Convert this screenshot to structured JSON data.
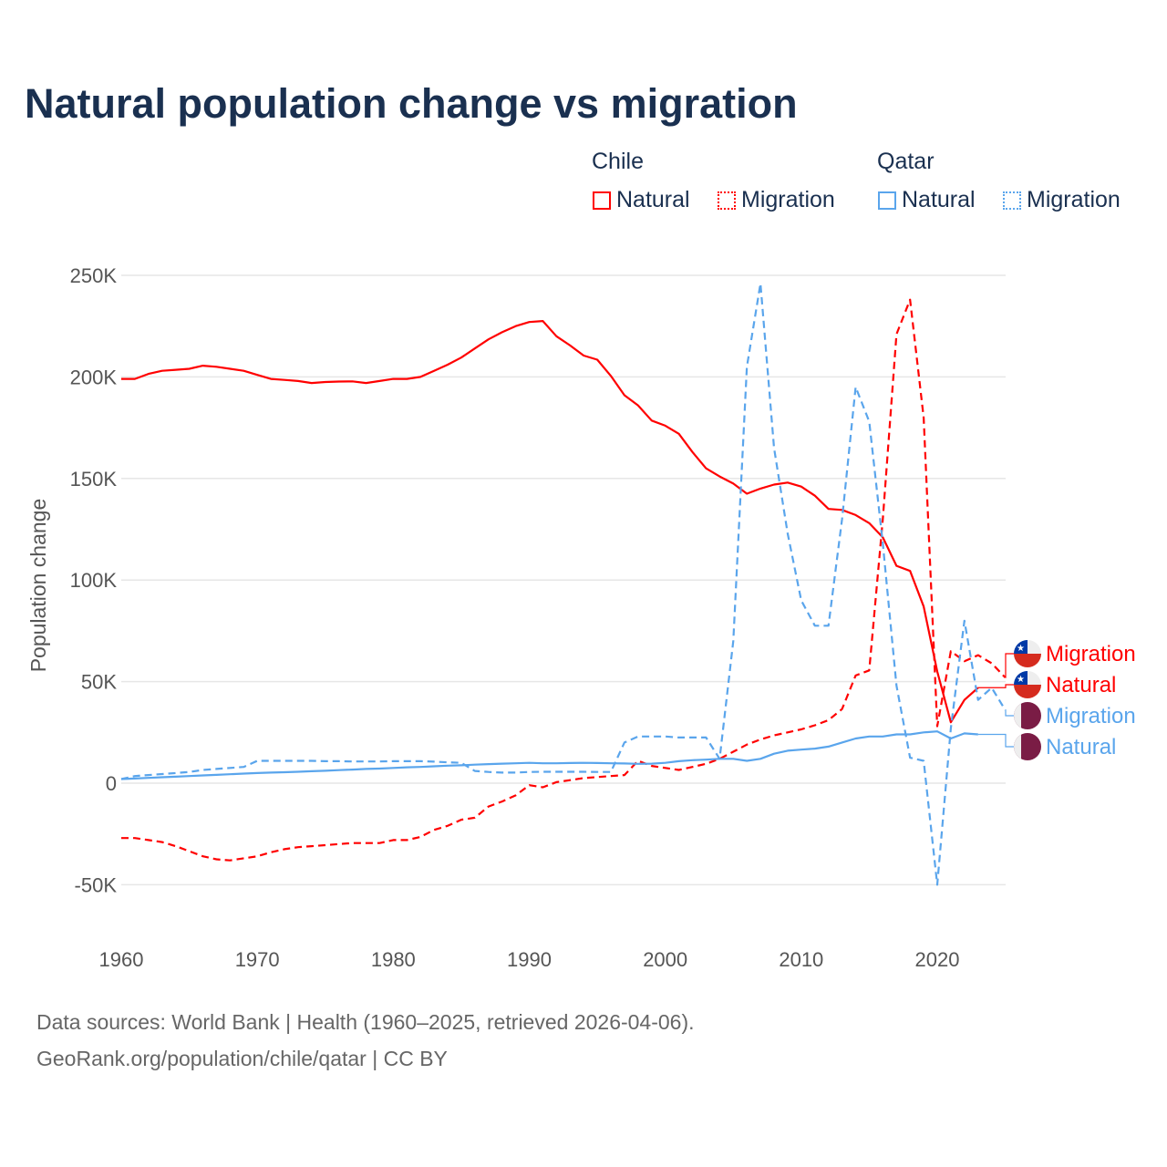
{
  "title": "Natural population change vs migration",
  "legend": {
    "groups": [
      {
        "name": "Chile",
        "items": [
          "Natural",
          "Migration"
        ]
      },
      {
        "name": "Qatar",
        "items": [
          "Natural",
          "Migration"
        ]
      }
    ]
  },
  "footer": {
    "line1": "Data sources: World Bank | Health (1960–2025, retrieved 2026-04-06).",
    "line2": "GeoRank.org/population/chile/qatar | CC BY"
  },
  "colors": {
    "chile": "#ff0000",
    "qatar": "#5aa5ec",
    "title": "#1a3050"
  },
  "chart_data": {
    "type": "line",
    "ylabel": "Population change",
    "ylim": [
      -70000,
      260000
    ],
    "xlim": [
      1960,
      2025
    ],
    "yticks": [
      {
        "v": -50000,
        "label": "-50K"
      },
      {
        "v": 0,
        "label": "0"
      },
      {
        "v": 50000,
        "label": "50K"
      },
      {
        "v": 100000,
        "label": "100K"
      },
      {
        "v": 150000,
        "label": "150K"
      },
      {
        "v": 200000,
        "label": "200K"
      },
      {
        "v": 250000,
        "label": "250K"
      }
    ],
    "xticks": [
      {
        "v": 1960,
        "label": "1960"
      },
      {
        "v": 1970,
        "label": "1970"
      },
      {
        "v": 1980,
        "label": "1980"
      },
      {
        "v": 1990,
        "label": "1990"
      },
      {
        "v": 2000,
        "label": "2000"
      },
      {
        "v": 2010,
        "label": "2010"
      },
      {
        "v": 2020,
        "label": "2020"
      }
    ],
    "series": [
      {
        "name": "Chile Migration",
        "label": "Migration",
        "country": "chile",
        "dashed": true,
        "start": 1960,
        "values": [
          -27,
          -27,
          -28,
          -29,
          -31,
          -33.5,
          -36,
          -37.5,
          -38,
          -37,
          -36,
          -34,
          -32.5,
          -31.5,
          -31,
          -30.5,
          -30,
          -29.5,
          -29.5,
          -29.5,
          -28,
          -28,
          -26.5,
          -23,
          -21,
          -18,
          -17,
          -11.5,
          -9,
          -6,
          -1,
          -2,
          0.5,
          1.5,
          2.5,
          3,
          3.5,
          4,
          11,
          8.5,
          7.5,
          6.5,
          8,
          9.5,
          12,
          15.5,
          19,
          21.5,
          23.5,
          25,
          26.5,
          28.5,
          31,
          36.5,
          53,
          55.5,
          130,
          221,
          238,
          180,
          28,
          65,
          60,
          63,
          59,
          52
        ]
      },
      {
        "name": "Chile Natural",
        "label": "Natural",
        "country": "chile",
        "dashed": false,
        "start": 1960,
        "values": [
          199,
          199,
          201.5,
          203,
          203.5,
          204,
          205.5,
          205,
          204,
          203,
          201,
          199,
          198.5,
          198,
          197,
          197.5,
          197.7,
          197.8,
          197,
          198,
          199,
          199,
          200,
          203,
          206,
          209.5,
          214,
          218.5,
          222,
          225,
          227,
          227.5,
          220,
          215.5,
          210.5,
          208.5,
          200.5,
          191,
          186,
          178.5,
          176,
          172,
          163,
          155,
          151,
          147.5,
          142.5,
          145,
          147,
          148,
          146,
          141.5,
          135,
          134.5,
          132,
          128,
          121,
          107,
          104.5,
          87,
          55,
          30,
          41,
          47
        ]
      },
      {
        "name": "Qatar Migration",
        "label": "Migration",
        "country": "qatar",
        "dashed": true,
        "start": 1960,
        "values": [
          2,
          3.5,
          4,
          4.5,
          5,
          5.5,
          6.5,
          7,
          7.5,
          8,
          11,
          11,
          11,
          11,
          11,
          10.8,
          10.8,
          10.7,
          10.7,
          10.7,
          10.8,
          10.8,
          10.8,
          10.6,
          10.3,
          10,
          6,
          5.5,
          5.2,
          5.2,
          5.5,
          5.6,
          5.6,
          5.6,
          5.6,
          5.5,
          5.5,
          20,
          23,
          23,
          23,
          22.5,
          22.5,
          22.5,
          12,
          70,
          205,
          246,
          165,
          123,
          90,
          77.5,
          77.5,
          130,
          195,
          178,
          118,
          48,
          12.5,
          11,
          -50,
          27,
          80,
          41,
          47,
          36
        ]
      },
      {
        "name": "Qatar Natural",
        "label": "Natural",
        "country": "qatar",
        "dashed": false,
        "start": 1960,
        "values": [
          2,
          2.3,
          2.6,
          2.9,
          3.2,
          3.5,
          3.8,
          4.1,
          4.4,
          4.7,
          5,
          5.2,
          5.4,
          5.6,
          5.9,
          6.1,
          6.4,
          6.7,
          7,
          7.2,
          7.5,
          7.8,
          8,
          8.3,
          8.6,
          8.8,
          9.1,
          9.4,
          9.6,
          9.8,
          10,
          9.8,
          9.8,
          9.9,
          10,
          9.9,
          9.8,
          9.7,
          9.5,
          9.6,
          10,
          10.8,
          11.3,
          11.6,
          12,
          12,
          11,
          12,
          14.5,
          16,
          16.5,
          17,
          18,
          20,
          22,
          23,
          23,
          24,
          24,
          25,
          25.5,
          22,
          24.5,
          24
        ]
      }
    ]
  }
}
